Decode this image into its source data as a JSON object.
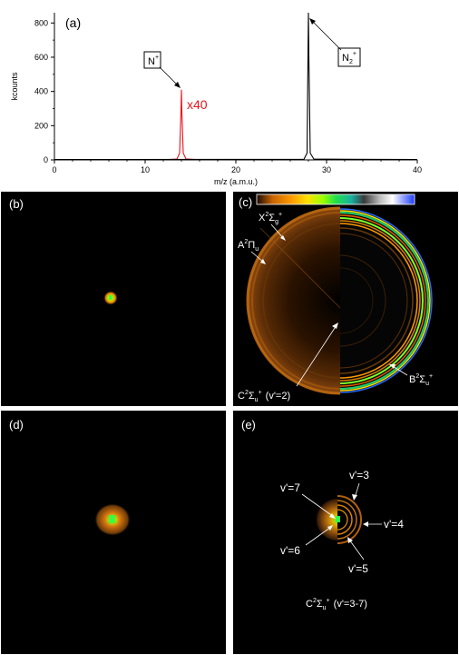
{
  "figure": {
    "panel_a_label": "(a)",
    "panel_b_label": "(b)",
    "panel_c_label": "(c)",
    "panel_d_label": "(d)",
    "panel_e_label": "(e)"
  },
  "chart_data": {
    "type": "line",
    "xlabel": "m/z (a.m.u.)",
    "ylabel": "kcounts",
    "xlim": [
      0,
      40
    ],
    "ylim": [
      0,
      860
    ],
    "x_ticks": [
      "0",
      "10",
      "20",
      "30",
      "40"
    ],
    "y_ticks": [
      "0",
      "200",
      "400",
      "600",
      "800"
    ],
    "series": [
      {
        "color": "#e8141b",
        "x": [
          12.6,
          13.5,
          13.8,
          13.95,
          14.0,
          14.05,
          14.2,
          14.5,
          15.5
        ],
        "y": [
          2,
          5,
          40,
          280,
          410,
          280,
          40,
          6,
          2
        ]
      },
      {
        "color": "#000000",
        "x": [
          0,
          27.5,
          27.85,
          27.95,
          28.0,
          28.05,
          28.2,
          28.6,
          40
        ],
        "y": [
          2,
          3,
          40,
          600,
          860,
          600,
          40,
          5,
          2
        ]
      }
    ],
    "annotations": {
      "n_label": "N",
      "n_sup": "+",
      "n2_label": "N",
      "n2_sub": "2",
      "n2_sup": "+",
      "scale_label": "x40"
    }
  },
  "panel_c": {
    "x_state": "X",
    "x_sup": "2",
    "x_sigma": "Σ",
    "x_sub": "g",
    "x_plus": "+",
    "a_state": "A",
    "a_sup": "2",
    "a_pi": "Π",
    "a_sub": "u",
    "b_state": "B",
    "b_sup": "2",
    "b_sigma": "Σ",
    "b_sub": "u",
    "b_plus": "+",
    "c_state": "C",
    "c_sup": "2",
    "c_sigma": "Σ",
    "c_sub": "u",
    "c_plus": "+",
    "c_vib": "(v'=2)"
  },
  "panel_e": {
    "v3": "v'=3",
    "v4": "v'=4",
    "v5": "v'=5",
    "v6": "v'=6",
    "v7": "v'=7",
    "c_state": "C",
    "c_sup": "2",
    "c_sigma": "Σ",
    "c_sub": "u",
    "c_plus": "+",
    "c_vib": "(v'=3-7)"
  },
  "colors": {
    "n_plus_series": "#e8141b",
    "n2_plus_series": "#000000",
    "panel_background": "#000000"
  }
}
